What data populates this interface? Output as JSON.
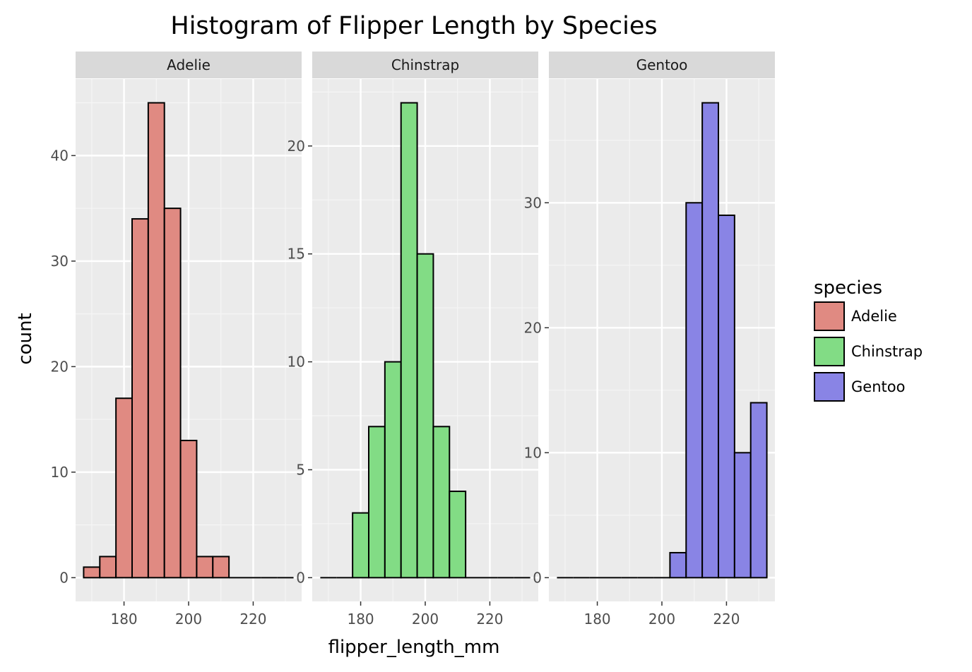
{
  "chart_data": {
    "type": "bar",
    "title": "Histogram of Flipper Length by Species",
    "xlabel": "flipper_length_mm",
    "ylabel": "count",
    "xlim": [
      165,
      235
    ],
    "xticks": [
      180,
      200,
      220
    ],
    "bin_edges": [
      167.5,
      172.5,
      177.5,
      182.5,
      187.5,
      192.5,
      197.5,
      202.5,
      207.5,
      212.5,
      217.5,
      222.5,
      227.5,
      232.5
    ],
    "facets": [
      {
        "name": "Adelie",
        "color": "#e08a82",
        "ylim": [
          -2.25,
          47.25
        ],
        "yticks": [
          0,
          10,
          20,
          30,
          40
        ],
        "values": [
          1,
          2,
          17,
          34,
          45,
          35,
          13,
          2,
          2,
          0,
          0,
          0,
          0
        ]
      },
      {
        "name": "Chinstrap",
        "color": "#82dc85",
        "ylim": [
          -1.1,
          23.1
        ],
        "yticks": [
          0,
          5,
          10,
          15,
          20
        ],
        "values": [
          0,
          0,
          3,
          7,
          10,
          22,
          15,
          7,
          4,
          0,
          0,
          0,
          0
        ]
      },
      {
        "name": "Gentoo",
        "color": "#8984e5",
        "ylim": [
          -1.9,
          39.9
        ],
        "yticks": [
          0,
          10,
          20,
          30
        ],
        "values": [
          0,
          0,
          0,
          0,
          0,
          0,
          0,
          2,
          30,
          38,
          29,
          10,
          14
        ]
      }
    ],
    "legend": {
      "title": "species",
      "position": "right",
      "items": [
        "Adelie",
        "Chinstrap",
        "Gentoo"
      ]
    },
    "grid": true
  }
}
